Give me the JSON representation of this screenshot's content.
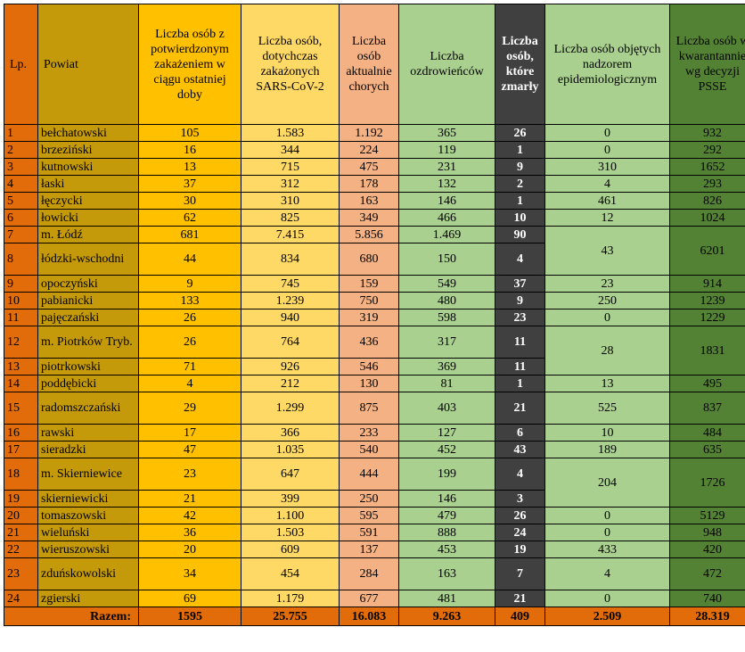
{
  "headers": {
    "lp": "Lp.",
    "powiat": "Powiat",
    "confirmed": "Liczba osób z potwierdzonym zakażeniem w ciągu ostatniej doby",
    "total": "Liczba osób, dotychczas zakażonych SARS-CoV-2",
    "active": "Liczba osób aktualnie chorych",
    "recovered": "Liczba ozdrowieńców",
    "deaths": "Liczba osób, które zmarły",
    "epi": "Liczba osób objętych nadzorem epidemiologicznym",
    "quarantine": "Liczba osób w kwarantannie wg decyzji PSSE"
  },
  "rows": [
    {
      "lp": "1",
      "powiat": "bełchatowski",
      "confirmed": "105",
      "total": "1.583",
      "active": "1.192",
      "recovered": "365",
      "deaths": "26",
      "epi": "0",
      "quarantine": "932"
    },
    {
      "lp": "2",
      "powiat": "brzeziński",
      "confirmed": "16",
      "total": "344",
      "active": "224",
      "recovered": "119",
      "deaths": "1",
      "epi": "0",
      "quarantine": "292"
    },
    {
      "lp": "3",
      "powiat": "kutnowski",
      "confirmed": "13",
      "total": "715",
      "active": "475",
      "recovered": "231",
      "deaths": "9",
      "epi": "310",
      "quarantine": "1652"
    },
    {
      "lp": "4",
      "powiat": "łaski",
      "confirmed": "37",
      "total": "312",
      "active": "178",
      "recovered": "132",
      "deaths": "2",
      "epi": "4",
      "quarantine": "293"
    },
    {
      "lp": "5",
      "powiat": "łęczycki",
      "confirmed": "30",
      "total": "310",
      "active": "163",
      "recovered": "146",
      "deaths": "1",
      "epi": "461",
      "quarantine": "826"
    },
    {
      "lp": "6",
      "powiat": "łowicki",
      "confirmed": "62",
      "total": "825",
      "active": "349",
      "recovered": "466",
      "deaths": "10",
      "epi": "12",
      "quarantine": "1024"
    },
    {
      "lp": "7",
      "powiat": "m. Łódź",
      "confirmed": "681",
      "total": "7.415",
      "active": "5.856",
      "recovered": "1.469",
      "deaths": "90",
      "epi": "43",
      "quarantine": "6201"
    },
    {
      "lp": "8",
      "powiat": "łódzki-wschodni",
      "confirmed": "44",
      "total": "834",
      "active": "680",
      "recovered": "150",
      "deaths": "4"
    },
    {
      "lp": "9",
      "powiat": "opoczyński",
      "confirmed": "9",
      "total": "745",
      "active": "159",
      "recovered": "549",
      "deaths": "37",
      "epi": "23",
      "quarantine": "914"
    },
    {
      "lp": "10",
      "powiat": "pabianicki",
      "confirmed": "133",
      "total": "1.239",
      "active": "750",
      "recovered": "480",
      "deaths": "9",
      "epi": "250",
      "quarantine": "1239"
    },
    {
      "lp": "11",
      "powiat": "pajęczański",
      "confirmed": "26",
      "total": "940",
      "active": "319",
      "recovered": "598",
      "deaths": "23",
      "epi": "0",
      "quarantine": "1229"
    },
    {
      "lp": "12",
      "powiat": "m. Piotrków Tryb.",
      "confirmed": "26",
      "total": "764",
      "active": "436",
      "recovered": "317",
      "deaths": "11",
      "epi": "28",
      "quarantine": "1831"
    },
    {
      "lp": "13",
      "powiat": "piotrkowski",
      "confirmed": "71",
      "total": "926",
      "active": "546",
      "recovered": "369",
      "deaths": "11"
    },
    {
      "lp": "14",
      "powiat": "poddębicki",
      "confirmed": "4",
      "total": "212",
      "active": "130",
      "recovered": "81",
      "deaths": "1",
      "epi": "13",
      "quarantine": "495"
    },
    {
      "lp": "15",
      "powiat": "radomszczański",
      "confirmed": "29",
      "total": "1.299",
      "active": "875",
      "recovered": "403",
      "deaths": "21",
      "epi": "525",
      "quarantine": "837"
    },
    {
      "lp": "16",
      "powiat": "rawski",
      "confirmed": "17",
      "total": "366",
      "active": "233",
      "recovered": "127",
      "deaths": "6",
      "epi": "10",
      "quarantine": "484"
    },
    {
      "lp": "17",
      "powiat": "sieradzki",
      "confirmed": "47",
      "total": "1.035",
      "active": "540",
      "recovered": "452",
      "deaths": "43",
      "epi": "189",
      "quarantine": "635"
    },
    {
      "lp": "18",
      "powiat": "m. Skierniewice",
      "confirmed": "23",
      "total": "647",
      "active": "444",
      "recovered": "199",
      "deaths": "4",
      "epi": "204",
      "quarantine": "1726"
    },
    {
      "lp": "19",
      "powiat": "skierniewicki",
      "confirmed": "21",
      "total": "399",
      "active": "250",
      "recovered": "146",
      "deaths": "3"
    },
    {
      "lp": "20",
      "powiat": "tomaszowski",
      "confirmed": "42",
      "total": "1.100",
      "active": "595",
      "recovered": "479",
      "deaths": "26",
      "epi": "0",
      "quarantine": "5129"
    },
    {
      "lp": "21",
      "powiat": "wieluński",
      "confirmed": "36",
      "total": "1.503",
      "active": "591",
      "recovered": "888",
      "deaths": "24",
      "epi": "0",
      "quarantine": "948"
    },
    {
      "lp": "22",
      "powiat": "wieruszowski",
      "confirmed": "20",
      "total": "609",
      "active": "137",
      "recovered": "453",
      "deaths": "19",
      "epi": "433",
      "quarantine": "420"
    },
    {
      "lp": "23",
      "powiat": "zduńskowolski",
      "confirmed": "34",
      "total": "454",
      "active": "284",
      "recovered": "163",
      "deaths": "7",
      "epi": "4",
      "quarantine": "472"
    },
    {
      "lp": "24",
      "powiat": "zgierski",
      "confirmed": "69",
      "total": "1.179",
      "active": "677",
      "recovered": "481",
      "deaths": "21",
      "epi": "0",
      "quarantine": "740"
    }
  ],
  "totals": {
    "label": "Razem:",
    "confirmed": "1595",
    "total": "25.755",
    "active": "16.083",
    "recovered": "9.263",
    "deaths": "409",
    "epi": "2.509",
    "quarantine": "28.319"
  },
  "colors": {
    "lp": "#E36C0A",
    "powiat": "#C49A0B",
    "confirmed": "#FFC000",
    "total": "#FFD966",
    "active": "#F4B183",
    "recovered": "#A9D08E",
    "deaths": "#404040",
    "epi": "#A9D08E",
    "quarantine": "#548235"
  }
}
